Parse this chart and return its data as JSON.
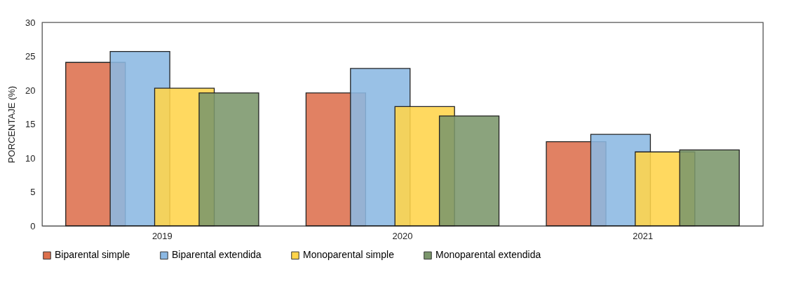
{
  "chart_data": {
    "type": "bar",
    "ylabel": "PORCENTAJE (%)",
    "categories": [
      "2019",
      "2020",
      "2021"
    ],
    "ylim": [
      0,
      30
    ],
    "yticks": [
      0,
      5,
      10,
      15,
      20,
      25,
      30
    ],
    "grid": false,
    "legend": "bottom",
    "series": [
      {
        "name": "Biparental simple",
        "color": "#dd704d",
        "values": [
          24.1,
          19.6,
          12.4
        ]
      },
      {
        "name": "Biparental extendida",
        "color": "#8bb8e3",
        "values": [
          25.7,
          23.2,
          13.5
        ]
      },
      {
        "name": "Monoparental simple",
        "color": "#ffd44a",
        "values": [
          20.3,
          17.6,
          10.9
        ]
      },
      {
        "name": "Monoparental extendida",
        "color": "#7b966b",
        "values": [
          19.6,
          16.2,
          11.2
        ]
      }
    ]
  }
}
